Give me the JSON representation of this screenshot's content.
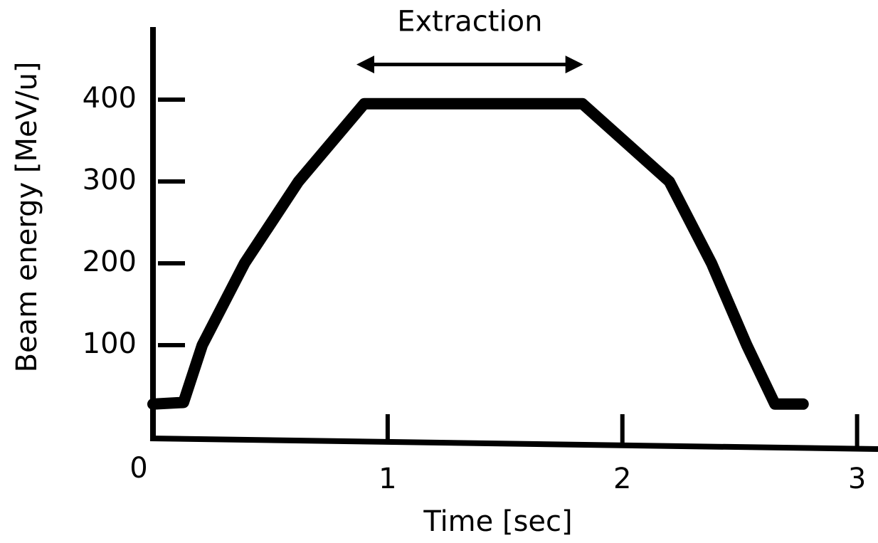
{
  "chart_data": {
    "type": "line",
    "xlabel": "Time [sec]",
    "ylabel": "Beam energy [MeV/u]",
    "x": [
      0,
      0.13,
      0.21,
      0.39,
      0.62,
      0.9,
      1.83,
      2.2,
      2.38,
      2.53,
      2.65,
      2.77
    ],
    "series": [
      {
        "color": "#000000",
        "values": [
          28,
          30,
          100,
          200,
          300,
          395,
          395,
          300,
          200,
          100,
          28,
          28
        ]
      }
    ],
    "xlim": [
      0,
      3.08
    ],
    "xticks": [
      0,
      1,
      2,
      3
    ],
    "ylim": [
      0,
      487
    ],
    "yticks": [
      100,
      200,
      300,
      400
    ],
    "grid": false,
    "annotations": [
      {
        "text": "Extraction",
        "x": [
          0.87,
          1.83
        ],
        "y": 443
      }
    ]
  }
}
